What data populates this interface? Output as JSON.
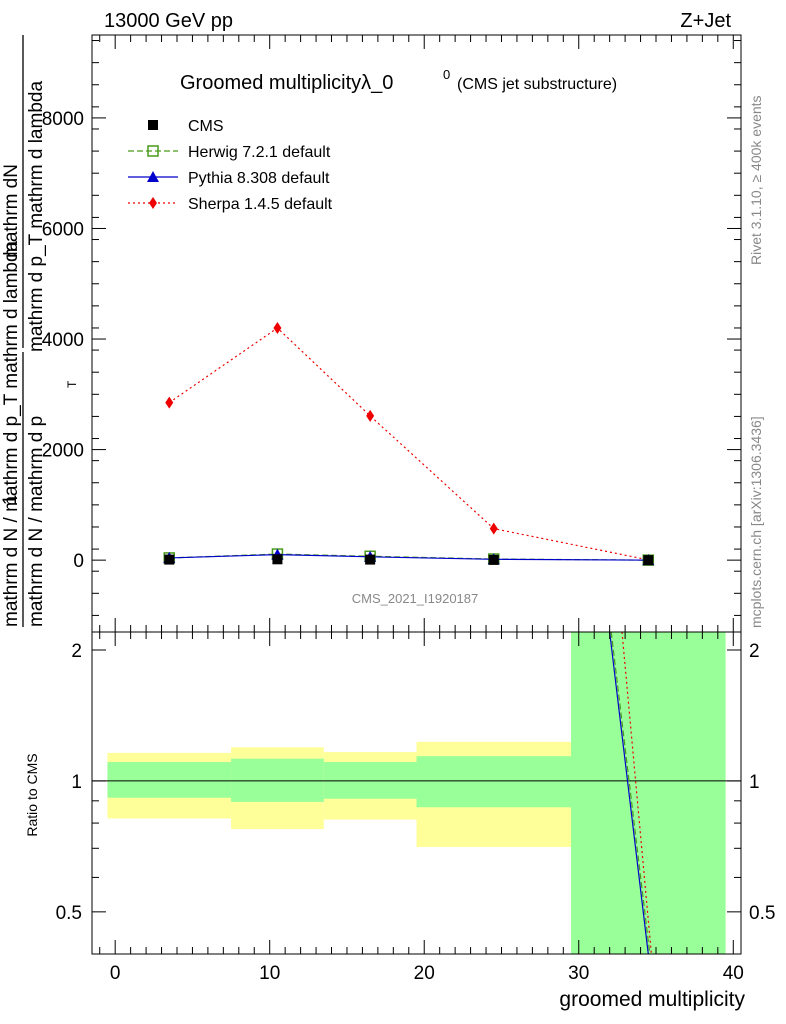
{
  "header": {
    "left": "13000 GeV pp",
    "right": "Z+Jet"
  },
  "side_text": {
    "rivet": "Rivet 3.1.10, ≥ 400k events",
    "mcplots": "mcplots.cern.ch [arXiv:1306.3436]"
  },
  "colors": {
    "cms": "#000000",
    "herwig": "#4a9a1a",
    "pythia": "#0000cc",
    "sherpa": "#ee0000",
    "band_inner": "#99ff99",
    "band_outer": "#ffff99"
  },
  "chart_data": [
    {
      "type": "line",
      "title_main": "Groomed multiplicityλ_0",
      "title_sup": "0",
      "title_sub": "(CMS jet substructure)",
      "analysis_label": "CMS_2021_I1920187",
      "ylabel_top": "1",
      "ylabel_frac_num": "mathrm dN",
      "ylabel_frac_den": "mathrm d p_T mathrm d lambda",
      "ylabel_bottom_line1": "mathrm d N / mathrm d p",
      "ylabel_bottom_line2": "mathrm d N / mathrm d p_T mathrm d lambda",
      "ylabel_sub": "T",
      "xlim": [
        -1.5,
        40.5
      ],
      "ylim": [
        -1300,
        9500
      ],
      "y_ticks": [
        0,
        2000,
        4000,
        6000,
        8000
      ],
      "y_tick_labels": [
        "0",
        "2000",
        "4000",
        "6000",
        "8000"
      ],
      "legend": [
        {
          "name": "CMS",
          "marker": "square-filled"
        },
        {
          "name": "Herwig 7.2.1 default",
          "marker": "square-open"
        },
        {
          "name": "Pythia 8.308 default",
          "marker": "triangle"
        },
        {
          "name": "Sherpa 1.4.5 default",
          "marker": "diamond"
        }
      ],
      "series": [
        {
          "name": "CMS",
          "x": [
            3.5,
            10.5,
            16.5,
            24.5,
            34.5
          ],
          "values": [
            10,
            15,
            10,
            5,
            0
          ]
        },
        {
          "name": "Herwig 7.2.1 default",
          "x": [
            3.5,
            10.5,
            16.5,
            24.5,
            34.5
          ],
          "values": [
            40,
            110,
            70,
            20,
            0
          ]
        },
        {
          "name": "Pythia 8.308 default",
          "x": [
            3.5,
            10.5,
            16.5,
            24.5,
            34.5
          ],
          "values": [
            40,
            100,
            60,
            15,
            0
          ]
        },
        {
          "name": "Sherpa 1.4.5 default",
          "x": [
            3.5,
            10.5,
            16.5,
            24.5,
            34.5
          ],
          "values": [
            2850,
            4200,
            2610,
            570,
            5
          ]
        }
      ]
    },
    {
      "type": "line",
      "ylabel": "Ratio to CMS",
      "xlabel": "groomed multiplicity",
      "xlim": [
        -1.5,
        40.5
      ],
      "ylim": [
        0.4,
        2.2
      ],
      "x_ticks": [
        0,
        10,
        20,
        30,
        40
      ],
      "x_tick_labels": [
        "0",
        "10",
        "20",
        "30",
        "40"
      ],
      "y_ticks": [
        0.5,
        1,
        2
      ],
      "y_tick_labels": [
        "0.5",
        "1",
        "2"
      ],
      "bins": [
        {
          "lo": -0.5,
          "hi": 7.5,
          "inner": [
            0.915,
            1.105
          ],
          "outer": [
            0.82,
            1.16
          ]
        },
        {
          "lo": 7.5,
          "hi": 13.5,
          "inner": [
            0.895,
            1.125
          ],
          "outer": [
            0.775,
            1.195
          ]
        },
        {
          "lo": 13.5,
          "hi": 19.5,
          "inner": [
            0.91,
            1.105
          ],
          "outer": [
            0.815,
            1.165
          ]
        },
        {
          "lo": 19.5,
          "hi": 29.5,
          "inner": [
            0.87,
            1.14
          ],
          "outer": [
            0.705,
            1.23
          ]
        },
        {
          "lo": 29.5,
          "hi": 39.5,
          "inner": [
            0.4,
            2.2
          ],
          "outer": [
            0.4,
            2.2
          ]
        }
      ],
      "lines": [
        {
          "name": "Pythia 8.308 default",
          "x": [
            32.0,
            34.5
          ],
          "values": [
            2.2,
            0.4
          ]
        },
        {
          "name": "Herwig 7.2.1 default",
          "x": [
            32.1,
            34.6
          ],
          "values": [
            2.2,
            0.4
          ]
        },
        {
          "name": "Sherpa 1.4.5 default",
          "x": [
            32.8,
            34.7
          ],
          "values": [
            2.2,
            0.4
          ]
        }
      ]
    }
  ]
}
